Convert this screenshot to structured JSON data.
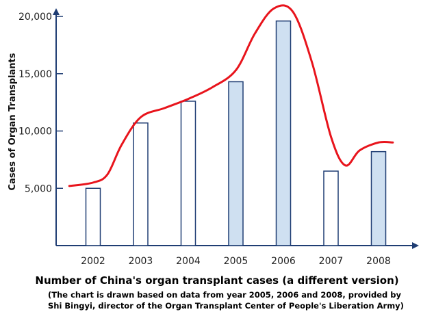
{
  "chart_data": {
    "type": "bar",
    "title": "Number of China's organ transplant cases (a different version)",
    "subtitle": "(The chart is drawn based on data from year 2005, 2006 and 2008, provided by Shi Bingyi, director of the Organ Transplant Center of People's Liberation Army)",
    "ylabel": "Cases of Organ Transplants",
    "xlabel": "",
    "ylim": [
      0,
      21500
    ],
    "yticks": [
      {
        "value": 5000,
        "label": "5,000"
      },
      {
        "value": 10000,
        "label": "10,000"
      },
      {
        "value": 15000,
        "label": "15,000"
      },
      {
        "value": 20000,
        "label": "20,000"
      }
    ],
    "categories": [
      "2002",
      "2003",
      "2004",
      "2005",
      "2006",
      "2007",
      "2008"
    ],
    "values": [
      5000,
      10700,
      12600,
      14300,
      19600,
      6500,
      8200
    ],
    "highlighted": [
      false,
      false,
      false,
      true,
      true,
      false,
      true
    ],
    "trend_line": {
      "color": "#e8141c",
      "points": [
        {
          "x": 2001.5,
          "y": 5200
        },
        {
          "x": 2002.0,
          "y": 5500
        },
        {
          "x": 2002.3,
          "y": 6200
        },
        {
          "x": 2002.6,
          "y": 8800
        },
        {
          "x": 2003.0,
          "y": 11200
        },
        {
          "x": 2003.5,
          "y": 12000
        },
        {
          "x": 2004.0,
          "y": 12800
        },
        {
          "x": 2004.5,
          "y": 13800
        },
        {
          "x": 2005.0,
          "y": 15300
        },
        {
          "x": 2005.4,
          "y": 18500
        },
        {
          "x": 2005.8,
          "y": 20700
        },
        {
          "x": 2006.2,
          "y": 20400
        },
        {
          "x": 2006.6,
          "y": 16000
        },
        {
          "x": 2007.0,
          "y": 9500
        },
        {
          "x": 2007.3,
          "y": 7000
        },
        {
          "x": 2007.6,
          "y": 8300
        },
        {
          "x": 2008.0,
          "y": 9000
        },
        {
          "x": 2008.3,
          "y": 9000
        }
      ]
    },
    "grid": false,
    "colors": {
      "axis": "#1f3d73",
      "bar_border": "#1f3d73",
      "bar_fill_plain": "#ffffff",
      "bar_fill_highlight": "#cfe0f1"
    }
  }
}
